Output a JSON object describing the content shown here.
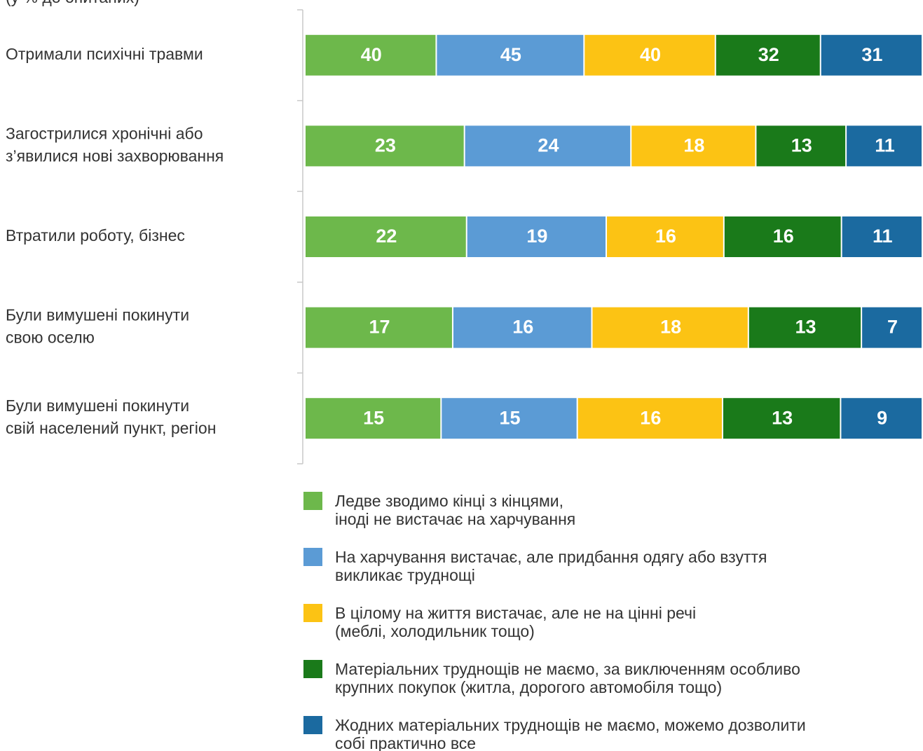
{
  "chart_data": {
    "type": "bar",
    "orientation": "horizontal",
    "stacked": true,
    "subtitle": "(у % до опитаних)",
    "categories": [
      "Отримали психічні травми",
      "Загострилися хронічні або\nз’явилися нові захворювання",
      "Втратили роботу, бізнес",
      "Були вимушені покинути\nсвою оселю",
      "Були вимушені покинути\nсвій населений пункт, регіон"
    ],
    "series": [
      {
        "name": "Ледве зводимо кінці з кінцями,\nіноді не вистачає на харчування",
        "color": "#6db84b",
        "values": [
          40,
          23,
          22,
          17,
          15
        ]
      },
      {
        "name": "На харчування вистачає, але придбання одягу або взуття\nвикликає труднощі",
        "color": "#5b9bd5",
        "values": [
          45,
          24,
          19,
          16,
          15
        ]
      },
      {
        "name": "В цілому на життя вистачає, але не на цінні речі\n(меблі, холодильник тощо)",
        "color": "#fcc314",
        "values": [
          40,
          18,
          16,
          18,
          16
        ]
      },
      {
        "name": "Матеріальних труднощів не маємо, за виключенням особливо\nкрупних покупок (житла, дорогого автомобіля тощо)",
        "color": "#1a7a1a",
        "values": [
          32,
          13,
          16,
          13,
          13
        ]
      },
      {
        "name": "Жодних матеріальних труднощів не маємо, можемо дозволити\nсобі практично все",
        "color": "#1b6aa0",
        "values": [
          31,
          11,
          11,
          7,
          9
        ]
      }
    ]
  }
}
